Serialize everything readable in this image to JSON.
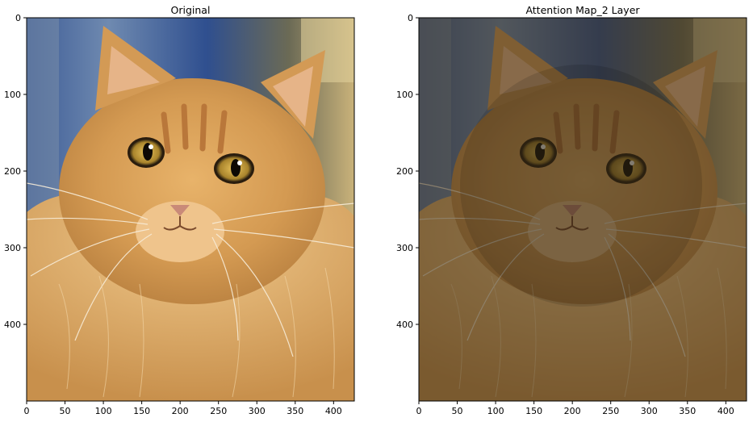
{
  "panels": [
    {
      "title": "Original",
      "image": "orange-long-haired-cat-photo",
      "x_ticks": [
        "0",
        "50",
        "100",
        "150",
        "200",
        "250",
        "300",
        "350",
        "400"
      ],
      "y_ticks": [
        "0",
        "100",
        "200",
        "300",
        "400"
      ]
    },
    {
      "title": "Attention Map_2 Layer",
      "image": "orange-long-haired-cat-photo-darkened-attention-overlay",
      "x_ticks": [
        "0",
        "50",
        "100",
        "150",
        "200",
        "250",
        "300",
        "350",
        "400"
      ],
      "y_ticks": [
        "0",
        "100",
        "200",
        "300",
        "400"
      ]
    }
  ],
  "colors": {
    "fur": "#d49a52",
    "background_blue": "#2f4f8f",
    "overlay": "#3a2e18"
  }
}
